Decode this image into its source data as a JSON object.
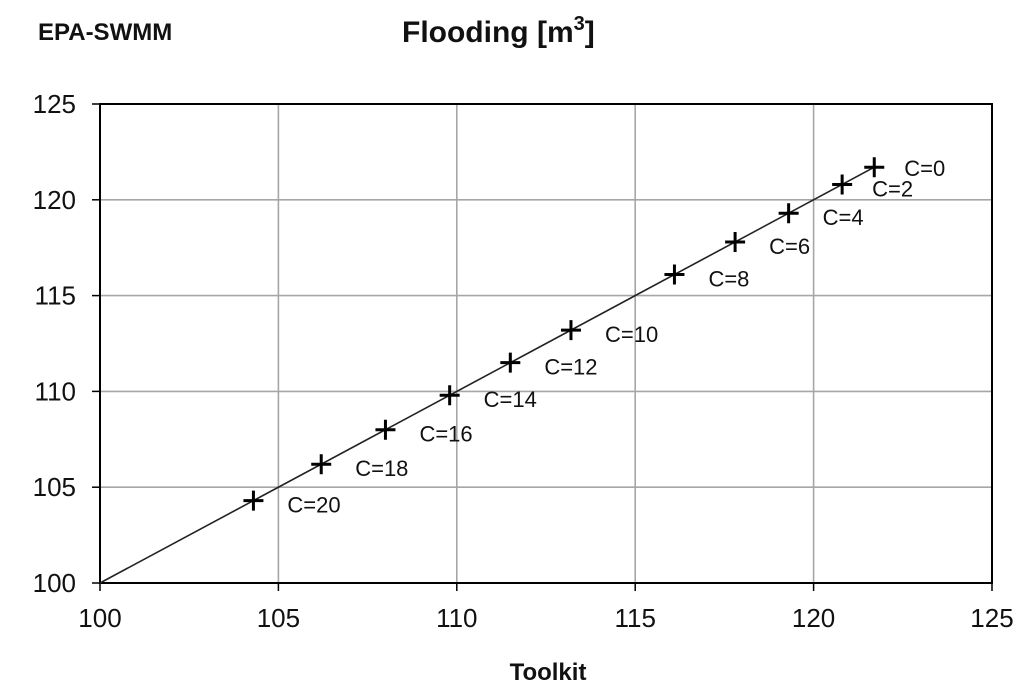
{
  "chart_data": {
    "type": "scatter",
    "title": "Flooding [m³]",
    "title_main": "Flooding [m",
    "title_sup": "3",
    "title_end": "]",
    "xlabel": "Toolkit",
    "ylabel": "EPA-SWMM",
    "xlim": [
      100,
      125
    ],
    "ylim": [
      100,
      125
    ],
    "xticks": [
      "100",
      "105",
      "110",
      "115",
      "120",
      "125"
    ],
    "yticks": [
      "100",
      "105",
      "110",
      "115",
      "120",
      "125"
    ],
    "grid": true,
    "reference_line": {
      "from": [
        100,
        100
      ],
      "to": [
        121.7,
        121.7
      ]
    },
    "marker": "plus",
    "points": [
      {
        "label": "C=0",
        "x": 121.7,
        "y": 121.7
      },
      {
        "label": "C=2",
        "x": 120.8,
        "y": 120.8
      },
      {
        "label": "C=4",
        "x": 119.3,
        "y": 119.3
      },
      {
        "label": "C=6",
        "x": 117.8,
        "y": 117.8
      },
      {
        "label": "C=8",
        "x": 116.1,
        "y": 116.1
      },
      {
        "label": "C=10",
        "x": 113.2,
        "y": 113.2
      },
      {
        "label": "C=12",
        "x": 111.5,
        "y": 111.5
      },
      {
        "label": "C=14",
        "x": 109.8,
        "y": 109.8
      },
      {
        "label": "C=16",
        "x": 108.0,
        "y": 108.0
      },
      {
        "label": "C=18",
        "x": 106.2,
        "y": 106.2
      },
      {
        "label": "C=20",
        "x": 104.3,
        "y": 104.3
      }
    ]
  }
}
